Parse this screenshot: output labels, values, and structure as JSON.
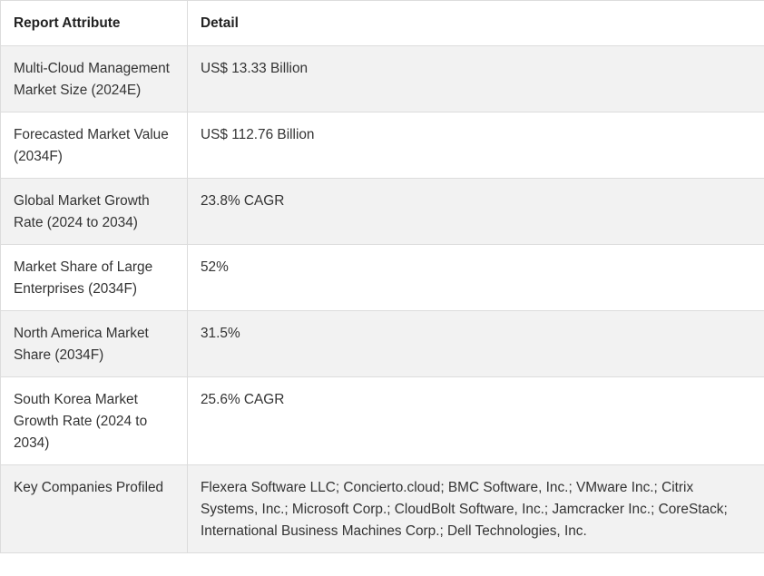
{
  "table": {
    "headers": {
      "attribute": "Report Attribute",
      "detail": "Detail"
    },
    "rows": [
      {
        "attribute": "Multi-Cloud Management Market Size (2024E)",
        "detail": "US$ 13.33 Billion"
      },
      {
        "attribute": "Forecasted Market Value (2034F)",
        "detail": "US$ 112.76 Billion"
      },
      {
        "attribute": "Global Market Growth Rate (2024 to 2034)",
        "detail": "23.8% CAGR"
      },
      {
        "attribute": "Market Share of Large Enterprises (2034F)",
        "detail": "52%"
      },
      {
        "attribute": "North America Market Share (2034F)",
        "detail": "31.5%"
      },
      {
        "attribute": "South Korea Market Growth Rate (2024 to 2034)",
        "detail": "25.6% CAGR"
      },
      {
        "attribute": "Key Companies Profiled",
        "detail": "Flexera Software LLC; Concierto.cloud; BMC Software, Inc.; VMware Inc.; Citrix Systems, Inc.; Microsoft Corp.; CloudBolt Software, Inc.; Jamcracker Inc.; CoreStack; International Business Machines Corp.; Dell Technologies, Inc."
      }
    ]
  }
}
